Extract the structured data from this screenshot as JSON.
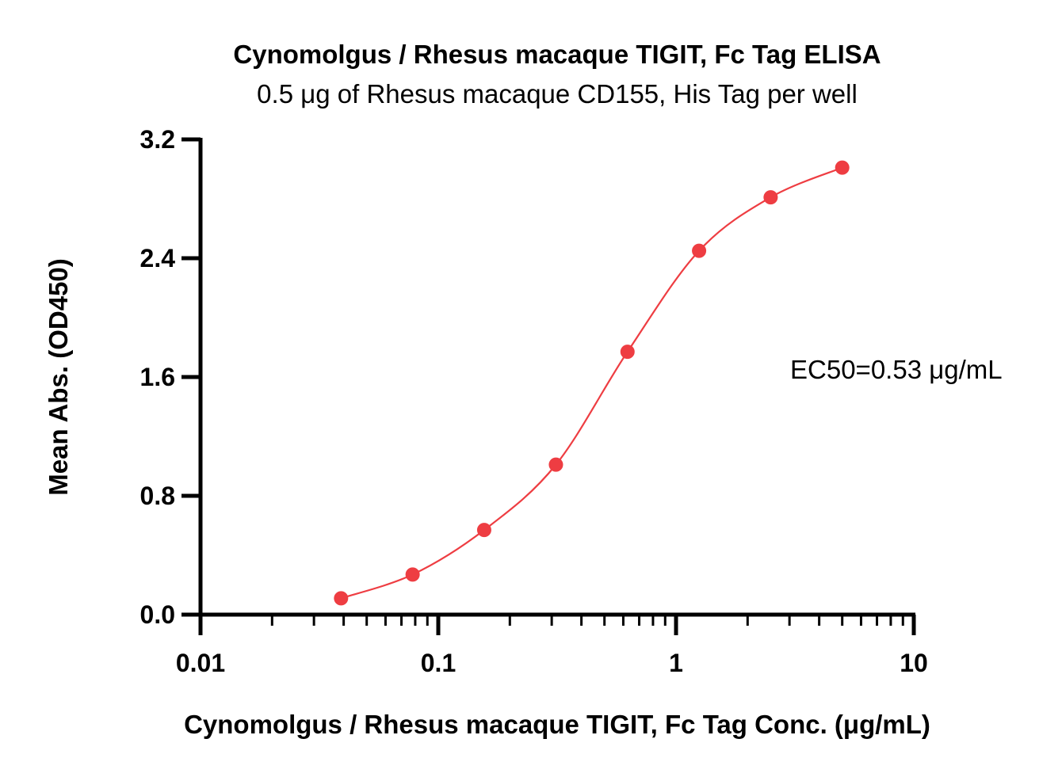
{
  "chart_data": {
    "type": "line",
    "title": "Cynomolgus / Rhesus macaque TIGIT, Fc Tag ELISA",
    "subtitle": "0.5 μg of Rhesus macaque CD155, His Tag per well",
    "xlabel": "Cynomolgus / Rhesus macaque TIGIT, Fc Tag Conc. (μg/mL)",
    "ylabel": "Mean Abs. (OD450)",
    "xscale": "log",
    "xlim": [
      0.01,
      10
    ],
    "ylim": [
      0,
      3.2
    ],
    "x_ticks": [
      "0.01",
      "0.1",
      "1",
      "10"
    ],
    "y_ticks": [
      "0.0",
      "0.8",
      "1.6",
      "2.4",
      "3.2"
    ],
    "series": [
      {
        "color": "#EE3D42",
        "points": [
          {
            "x": 0.039,
            "y": 0.11
          },
          {
            "x": 0.078,
            "y": 0.27
          },
          {
            "x": 0.156,
            "y": 0.57
          },
          {
            "x": 0.3125,
            "y": 1.01
          },
          {
            "x": 0.625,
            "y": 1.77
          },
          {
            "x": 1.25,
            "y": 2.45
          },
          {
            "x": 2.5,
            "y": 2.81
          },
          {
            "x": 5.0,
            "y": 3.01
          }
        ]
      }
    ],
    "annotations": [
      "EC50=0.53 μg/mL"
    ],
    "grid": false,
    "legend": "none"
  }
}
